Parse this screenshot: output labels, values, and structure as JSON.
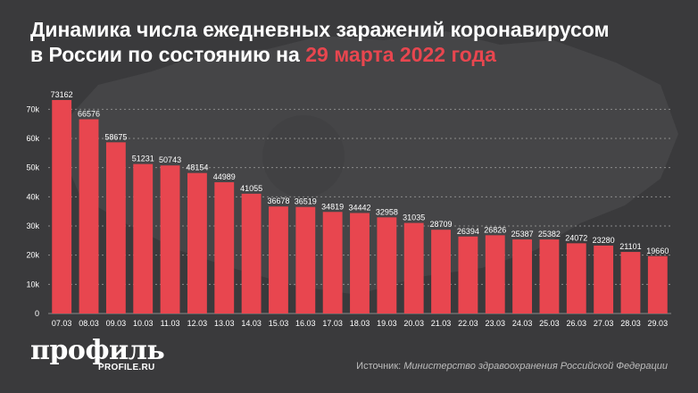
{
  "header": {
    "title_line1": "Динамика числа ежедневных заражений коронавирусом",
    "title_line2_prefix": "в России по состоянию на ",
    "title_line2_accent": "29 марта 2022 года"
  },
  "footer": {
    "logo": "профиль",
    "logo_sub": "PROFILE.RU",
    "source_label": "Источник: ",
    "source_name": "Министерство здравоохранения Российской Федерации"
  },
  "colors": {
    "background": "#3a3a3c",
    "bar": "#e8464f",
    "text": "#ffffff",
    "grid": "#8a8a8a"
  },
  "chart_data": {
    "type": "bar",
    "title": "Динамика числа ежедневных заражений коронавирусом в России по состоянию на 29 марта 2022 года",
    "xlabel": "",
    "ylabel": "",
    "ylim": [
      0,
      75000
    ],
    "yticks": [
      0,
      10000,
      20000,
      30000,
      40000,
      50000,
      60000,
      70000
    ],
    "ytick_labels": [
      "0",
      "10k",
      "20k",
      "30k",
      "40k",
      "50k",
      "60k",
      "70k"
    ],
    "grid": true,
    "categories": [
      "07.03",
      "08.03",
      "09.03",
      "10.03",
      "11.03",
      "12.03",
      "13.03",
      "14.03",
      "15.03",
      "16.03",
      "17.03",
      "18.03",
      "19.03",
      "20.03",
      "21.03",
      "22.03",
      "23.03",
      "24.03",
      "25.03",
      "26.03",
      "27.03",
      "28.03",
      "29.03"
    ],
    "values": [
      73162,
      66576,
      58675,
      51231,
      50743,
      48154,
      44989,
      41055,
      36678,
      36519,
      34819,
      34442,
      32958,
      31035,
      28709,
      26394,
      26826,
      25387,
      25382,
      24072,
      23280,
      21101,
      19660
    ]
  }
}
